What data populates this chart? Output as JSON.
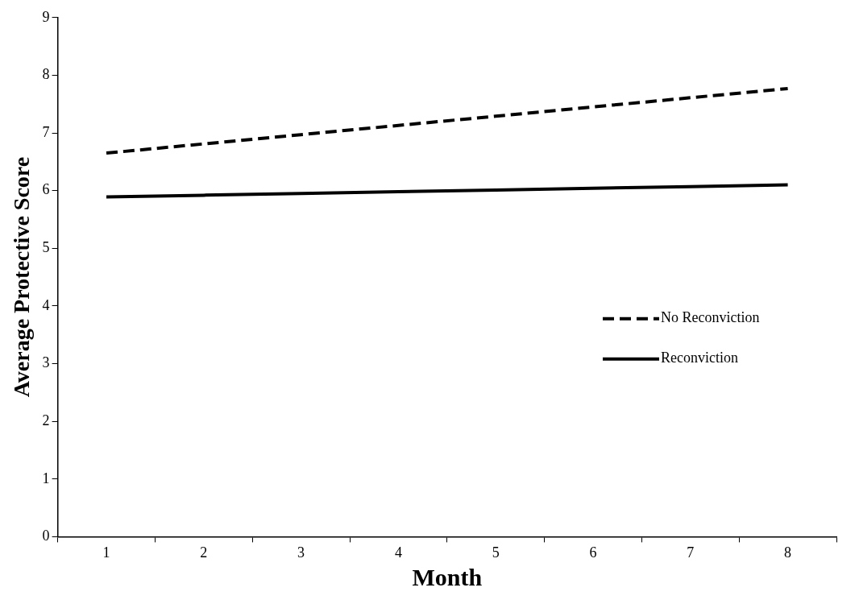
{
  "chart_data": {
    "type": "line",
    "xlabel": "Month",
    "ylabel": "Average Protective Score",
    "categories": [
      "1",
      "2",
      "3",
      "4",
      "5",
      "6",
      "7",
      "8"
    ],
    "series": [
      {
        "name": "No Reconviction",
        "color": "#000000",
        "line_style": "dashed",
        "values": [
          6.65,
          6.81,
          6.97,
          7.13,
          7.29,
          7.45,
          7.61,
          7.77
        ]
      },
      {
        "name": "Reconviction",
        "color": "#000000",
        "line_style": "solid",
        "values": [
          5.89,
          5.92,
          5.95,
          5.98,
          6.01,
          6.04,
          6.07,
          6.1
        ]
      }
    ],
    "ylim": [
      0,
      9
    ],
    "yticks": [
      0,
      1,
      2,
      3,
      4,
      5,
      6,
      7,
      8,
      9
    ],
    "grid": false,
    "legend": "right",
    "marker": "none"
  }
}
